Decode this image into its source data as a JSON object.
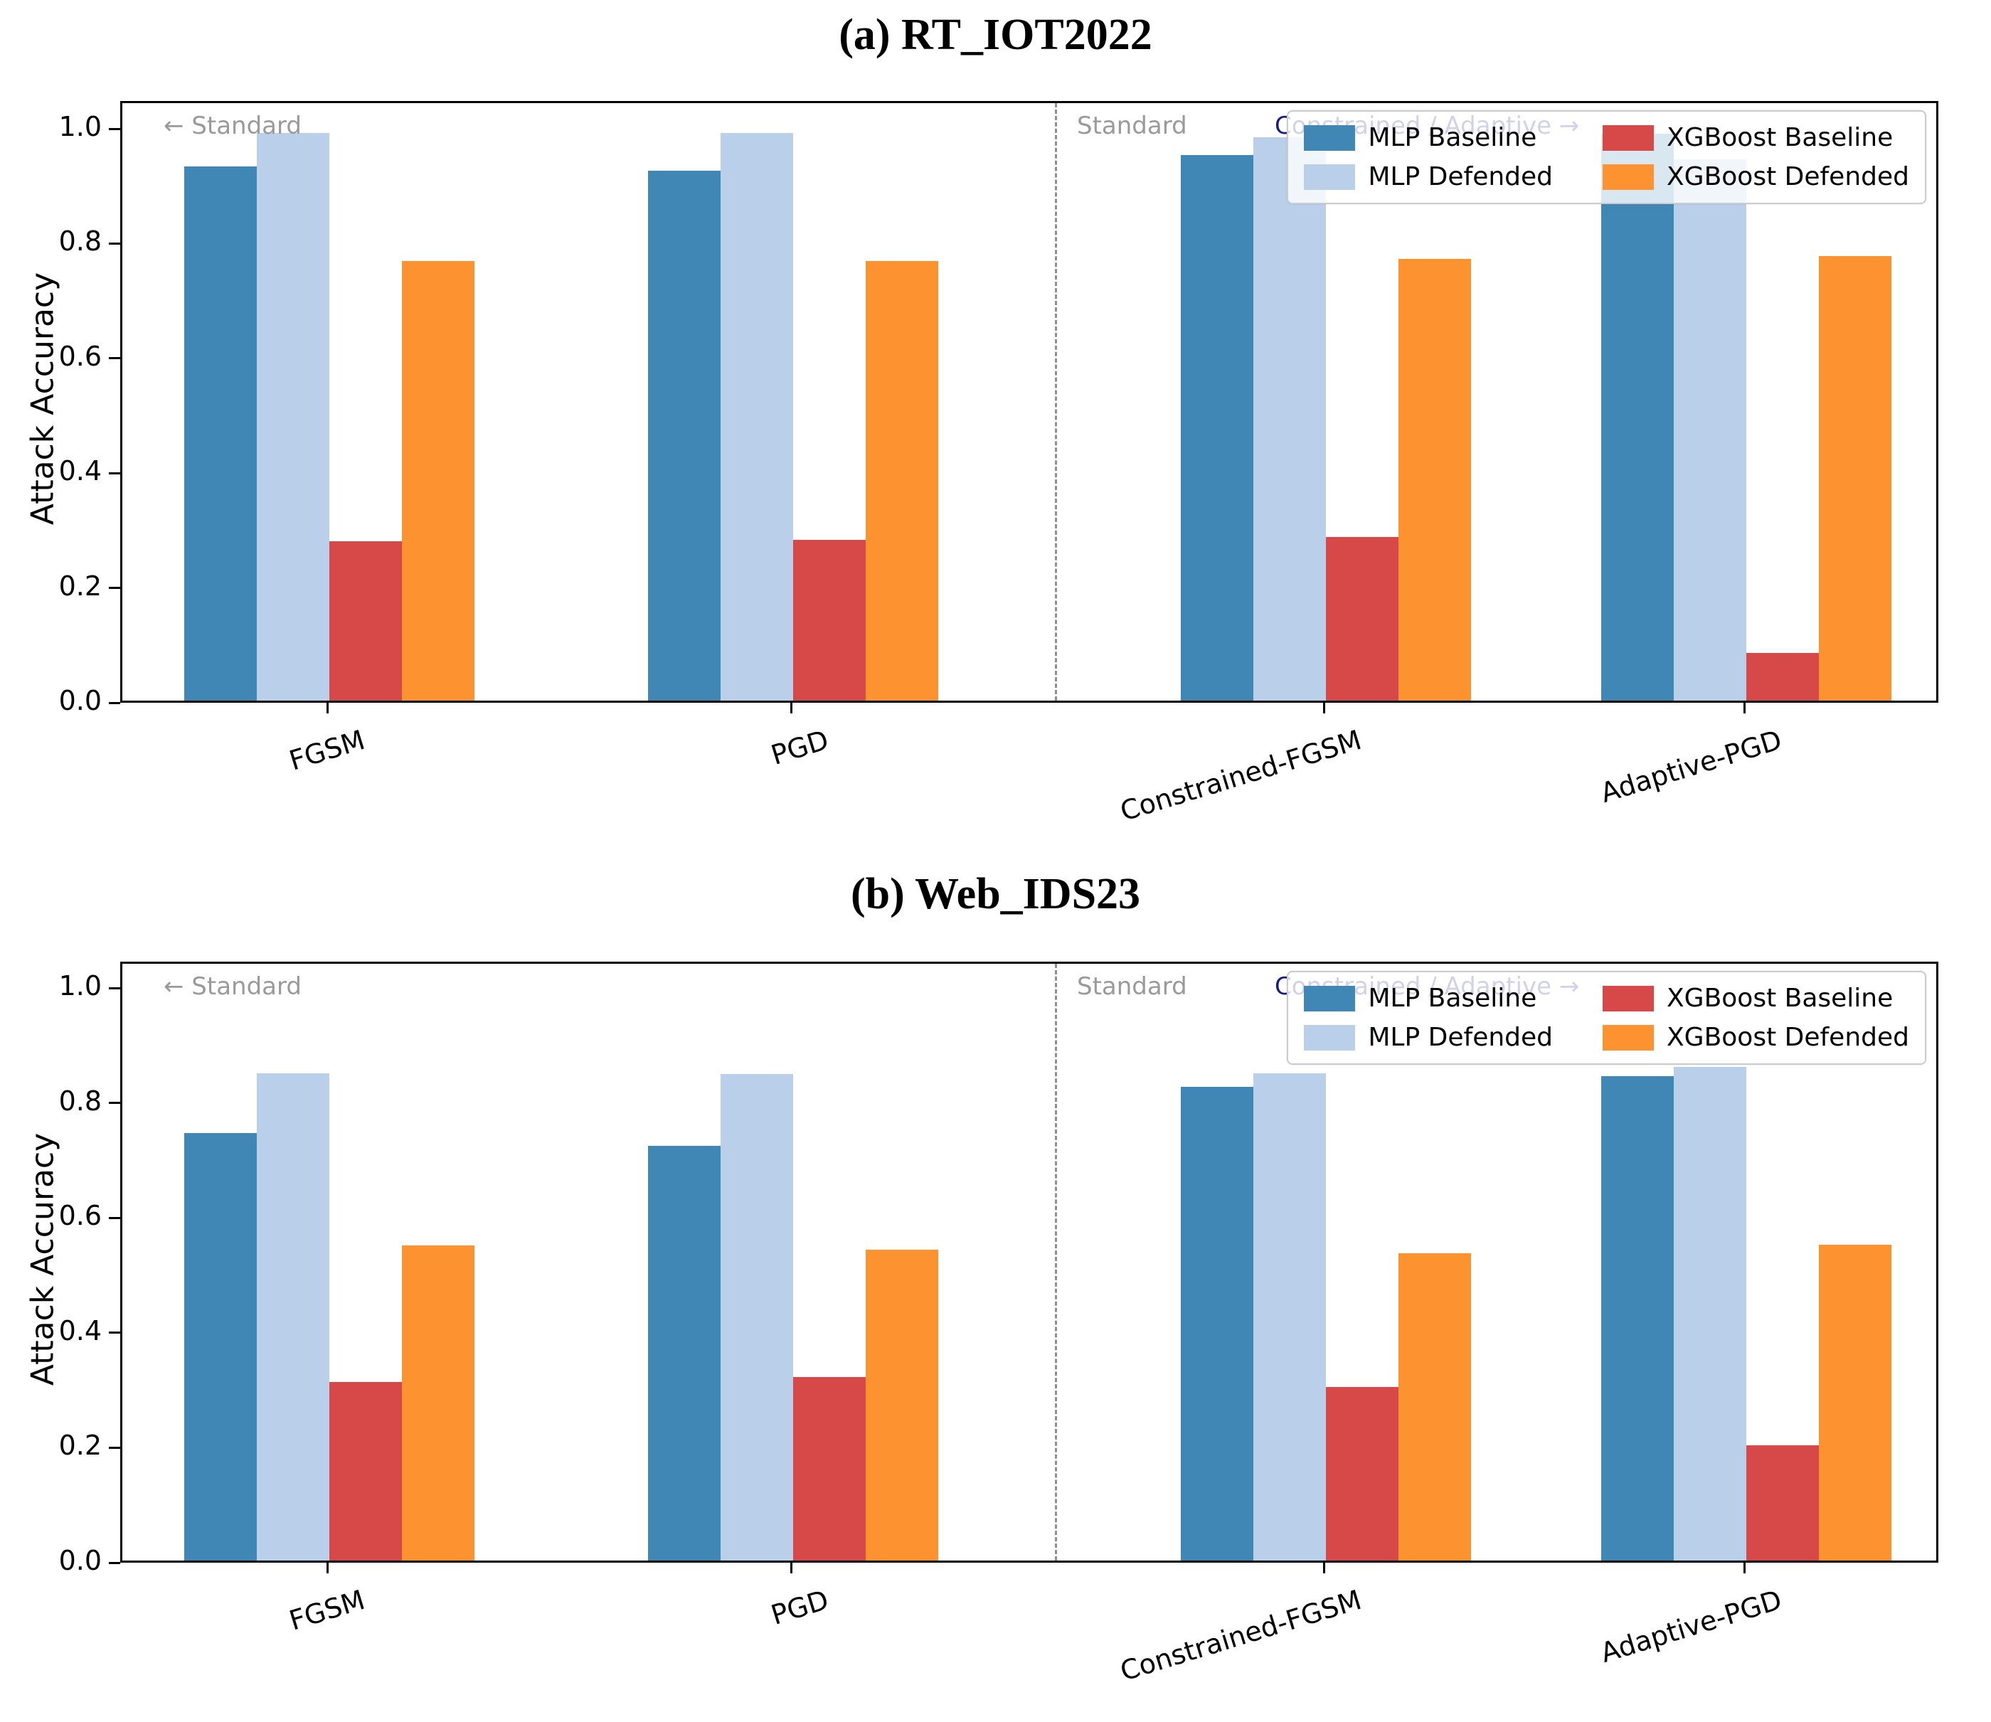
{
  "figure_background": "#ffffff",
  "annotations": {
    "left_zone": "← Standard",
    "divider_zone": "Standard",
    "right_zone": "Constrained / Adaptive →",
    "gray_color": "#9a9a9a",
    "navy_color": "#1a1a85"
  },
  "legend": {
    "entries": [
      "MLP Baseline",
      "MLP Defended",
      "XGBoost Baseline",
      "XGBoost Defended"
    ],
    "position": "upper right"
  },
  "colors": {
    "mlp_baseline": "#4187b5",
    "mlp_defended": "#bad0ea",
    "xgb_baseline": "#d74848",
    "xgb_defended": "#fd9230"
  },
  "chart_data": [
    {
      "type": "bar",
      "title": "(a) RT_IOT2022",
      "ylabel": "Attack Accuracy",
      "xlabel": "",
      "ylim": [
        0,
        1.05
      ],
      "yticks": [
        "0.0",
        "0.2",
        "0.4",
        "0.6",
        "0.8",
        "1.0"
      ],
      "grid": false,
      "legend_position": "upper right",
      "categories": [
        "FGSM",
        "PGD",
        "Constrained-FGSM",
        "Adaptive-PGD"
      ],
      "series": [
        {
          "name": "MLP Baseline",
          "color": "#4187b5",
          "values": [
            0.93,
            0.923,
            0.95,
            0.988
          ]
        },
        {
          "name": "MLP Defended",
          "color": "#bad0ea",
          "values": [
            0.989,
            0.989,
            0.981,
            0.943
          ]
        },
        {
          "name": "XGBoost Baseline",
          "color": "#d74848",
          "values": [
            0.277,
            0.28,
            0.285,
            0.083
          ]
        },
        {
          "name": "XGBoost Defended",
          "color": "#fd9230",
          "values": [
            0.766,
            0.766,
            0.77,
            0.774
          ]
        }
      ],
      "annotations": [
        "← Standard",
        "Standard",
        "Constrained / Adaptive →"
      ]
    },
    {
      "type": "bar",
      "title": "(b) Web_IDS23",
      "ylabel": "Attack Accuracy",
      "xlabel": "",
      "ylim": [
        0,
        1.05
      ],
      "yticks": [
        "0.0",
        "0.2",
        "0.4",
        "0.6",
        "0.8",
        "1.0"
      ],
      "grid": false,
      "legend_position": "upper right",
      "categories": [
        "FGSM",
        "PGD",
        "Constrained-FGSM",
        "Adaptive-PGD"
      ],
      "series": [
        {
          "name": "MLP Baseline",
          "color": "#4187b5",
          "values": [
            0.744,
            0.722,
            0.824,
            0.843
          ]
        },
        {
          "name": "MLP Defended",
          "color": "#bad0ea",
          "values": [
            0.848,
            0.847,
            0.848,
            0.859
          ]
        },
        {
          "name": "XGBoost Baseline",
          "color": "#d74848",
          "values": [
            0.311,
            0.319,
            0.302,
            0.201
          ]
        },
        {
          "name": "XGBoost Defended",
          "color": "#fd9230",
          "values": [
            0.548,
            0.541,
            0.535,
            0.55
          ]
        }
      ],
      "annotations": [
        "← Standard",
        "Standard",
        "Constrained / Adaptive →"
      ]
    }
  ]
}
